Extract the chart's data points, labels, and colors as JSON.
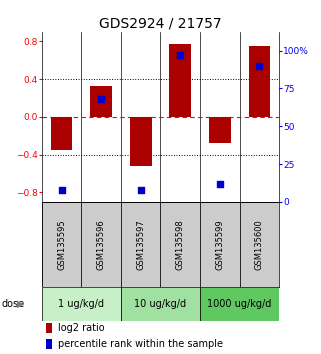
{
  "title": "GDS2924 / 21757",
  "samples": [
    "GSM135595",
    "GSM135596",
    "GSM135597",
    "GSM135598",
    "GSM135599",
    "GSM135600"
  ],
  "log2_ratio": [
    -0.35,
    0.33,
    -0.52,
    0.77,
    -0.28,
    0.75
  ],
  "percentile_rank": [
    8,
    68,
    8,
    97,
    12,
    90
  ],
  "dose_groups": [
    {
      "label": "1 ug/kg/d",
      "samples": [
        0,
        1
      ],
      "color": "#c8f0c8"
    },
    {
      "label": "10 ug/kg/d",
      "samples": [
        2,
        3
      ],
      "color": "#a0e0a0"
    },
    {
      "label": "1000 ug/kg/d",
      "samples": [
        4,
        5
      ],
      "color": "#60c860"
    }
  ],
  "bar_color": "#aa0000",
  "dot_color": "#0000cc",
  "ylim_left": [
    -0.9,
    0.9
  ],
  "ylim_right": [
    0,
    112.5
  ],
  "yticks_left": [
    -0.8,
    -0.4,
    0.0,
    0.4,
    0.8
  ],
  "yticks_right": [
    0,
    25,
    50,
    75,
    100
  ],
  "ytick_labels_right": [
    "0",
    "25",
    "50",
    "75",
    "100%"
  ],
  "bar_width": 0.55,
  "dot_size": 18,
  "legend_red": "log2 ratio",
  "legend_blue": "percentile rank within the sample",
  "dose_label": "dose",
  "sample_bg_color": "#cccccc",
  "title_fontsize": 10,
  "tick_fontsize": 6.5,
  "sample_fontsize": 6,
  "dose_fontsize": 7,
  "legend_fontsize": 7
}
